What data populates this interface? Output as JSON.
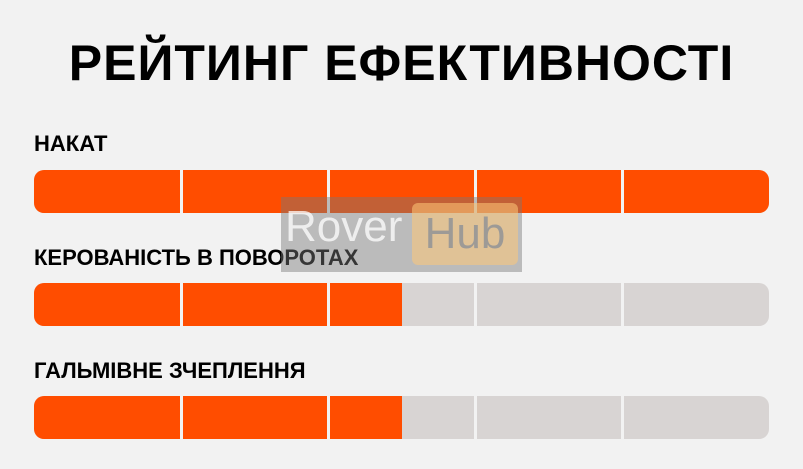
{
  "title": "РЕЙТИНГ ЕФЕКТИВНОСТІ",
  "accent_color": "#ff4d00",
  "ratings": [
    {
      "label": "НАКАТ",
      "value": 5,
      "max": 5
    },
    {
      "label": "КЕРОВАНІСТЬ В ПОВОРОТАХ",
      "value": 2.5,
      "max": 5
    },
    {
      "label": "ГАЛЬМІВНЕ ЗЧЕПЛЕННЯ",
      "value": 2.5,
      "max": 5
    }
  ],
  "watermark": {
    "part1": "Rover",
    "part2": "Hub"
  }
}
